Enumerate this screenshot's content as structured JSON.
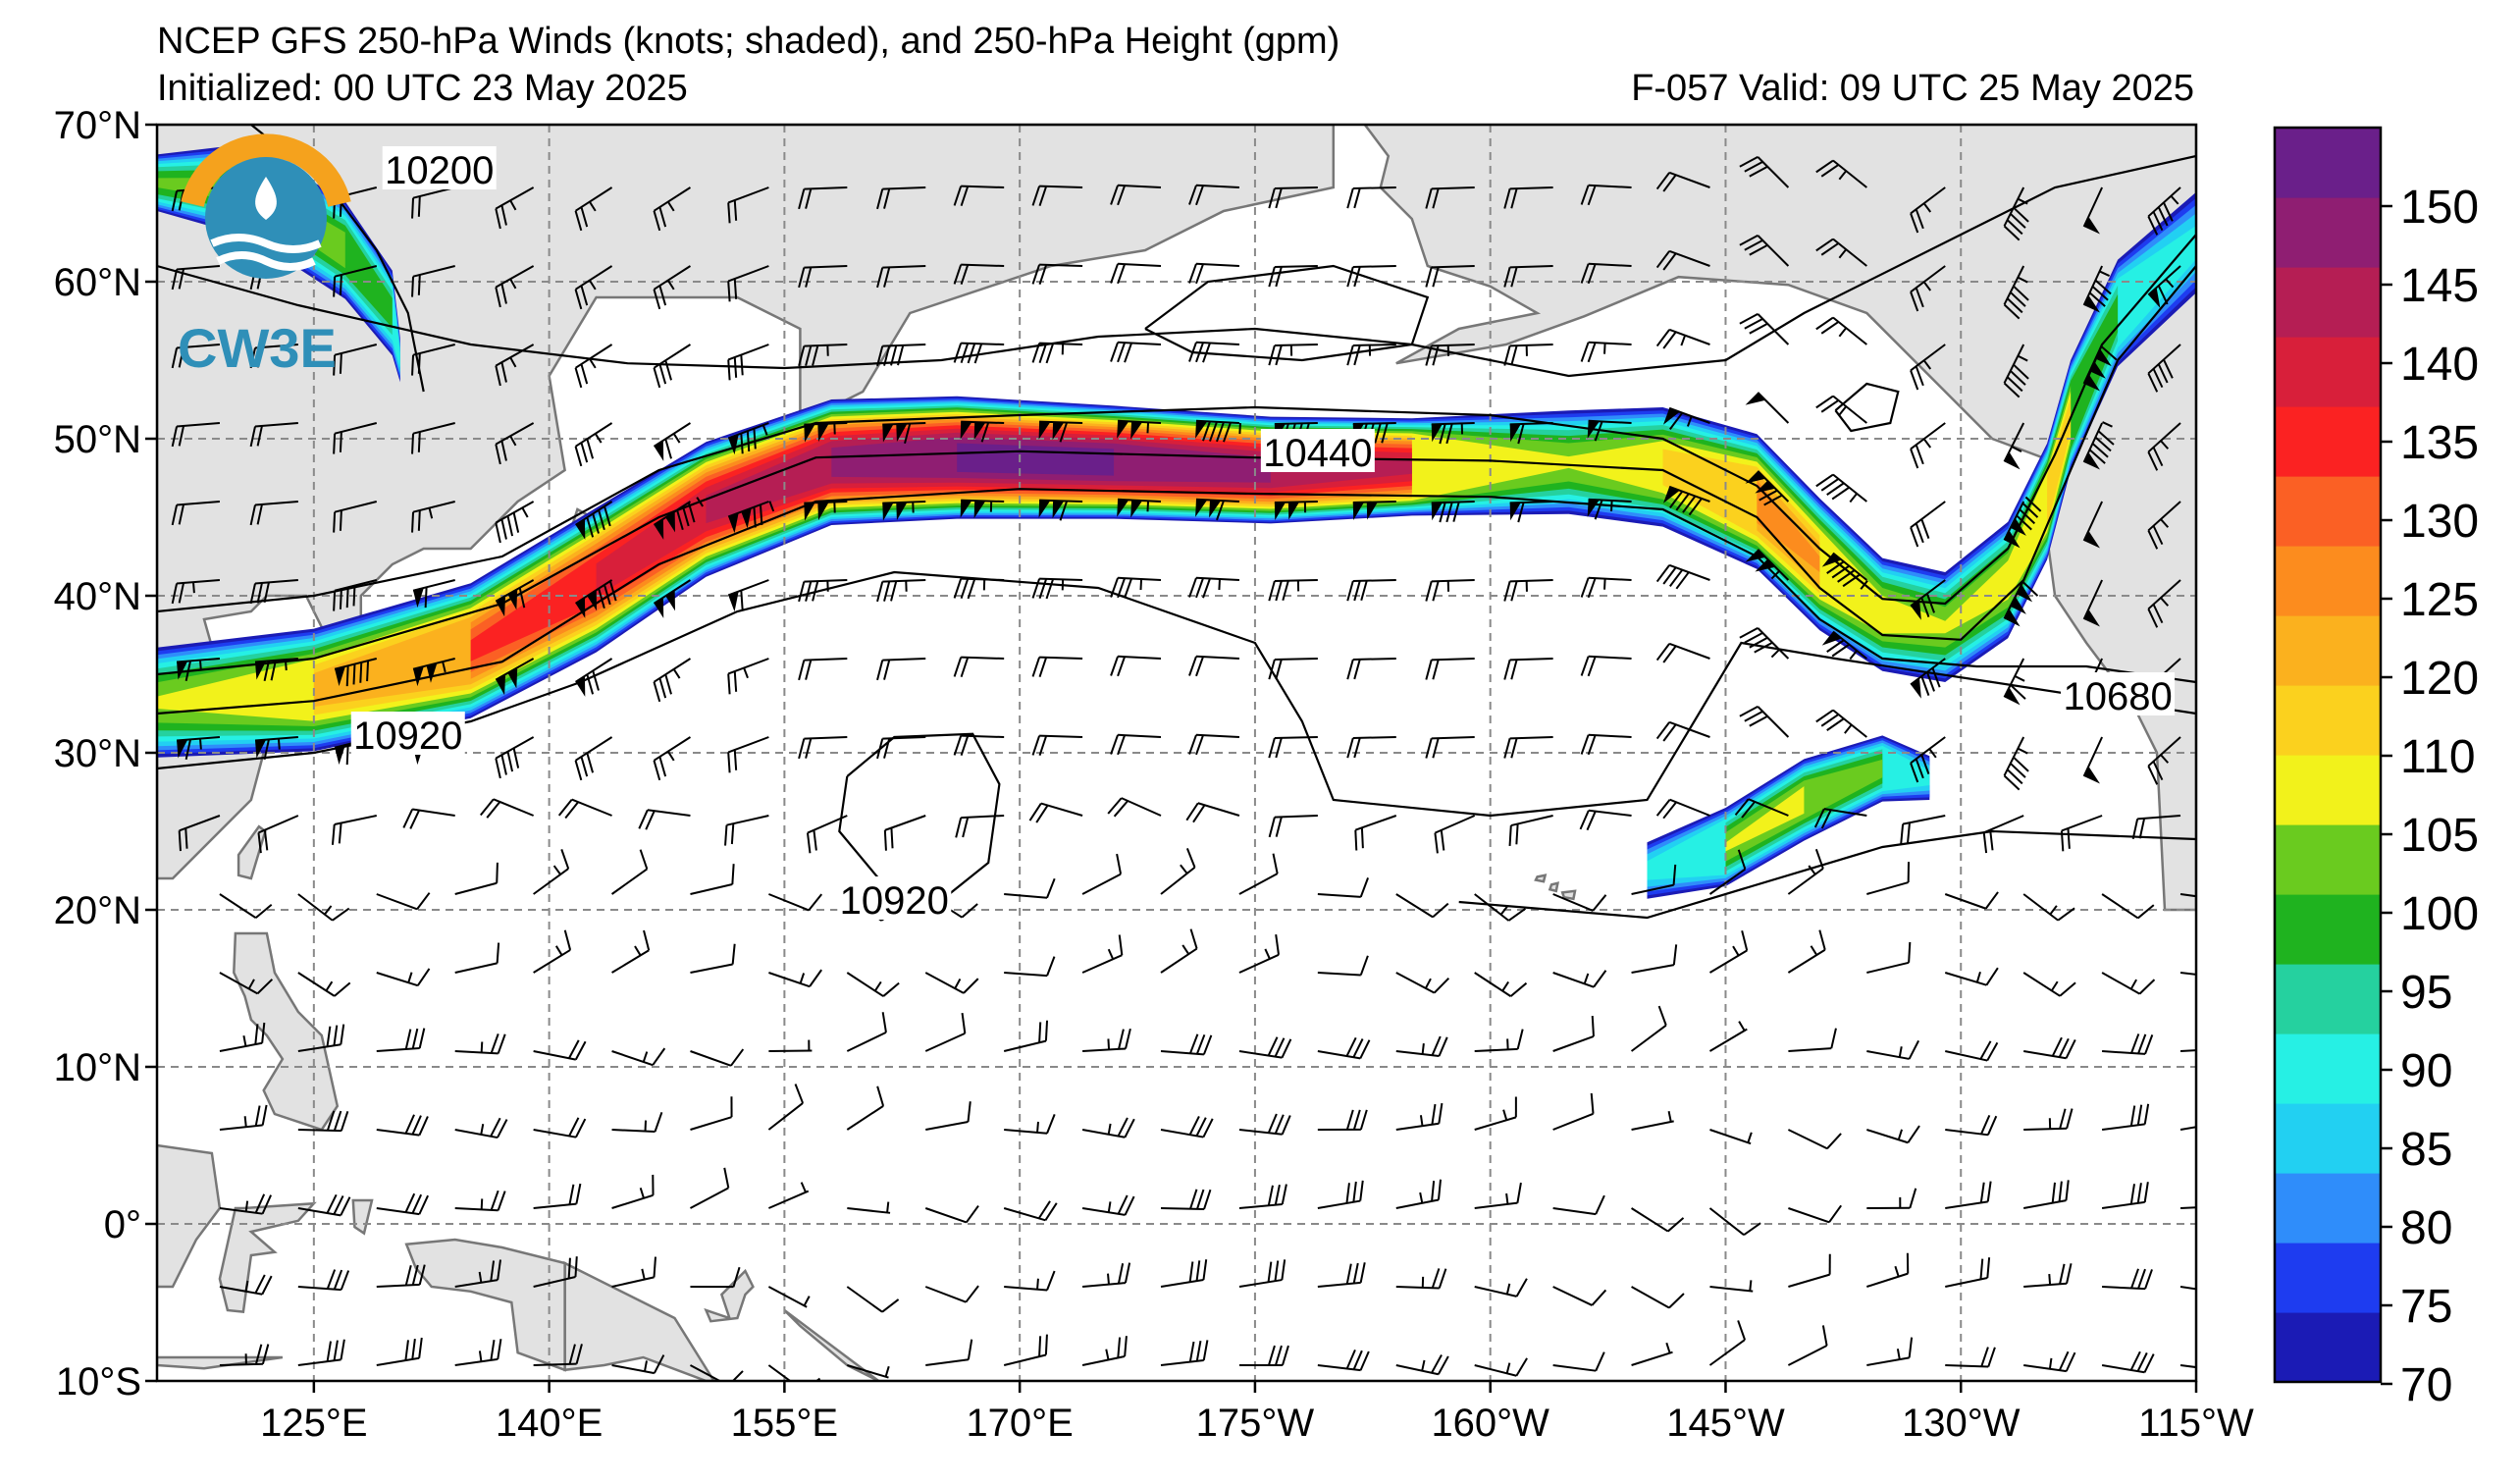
{
  "title": {
    "line1": "NCEP GFS 250-hPa Winds (knots; shaded), and 250-hPa Height (gpm)",
    "init": "Initialized: 00 UTC 23 May 2025",
    "valid": "F-057  Valid: 09 UTC 25 May 2025"
  },
  "logo": {
    "text": "CW3E",
    "icon": "cw3e-logo-icon"
  },
  "map": {
    "lon_range_deg_east": [
      115,
      245
    ],
    "lat_range": [
      -10,
      70
    ],
    "lat_ticks": [
      "70°N",
      "60°N",
      "50°N",
      "40°N",
      "30°N",
      "20°N",
      "10°N",
      "0°",
      "10°S"
    ],
    "lon_ticks": [
      "125°E",
      "140°E",
      "155°E",
      "170°E",
      "175°W",
      "160°W",
      "145°W",
      "130°W",
      "115°W"
    ],
    "grid": true,
    "land_color": "#e2e2e2",
    "contour_labels": [
      {
        "text": "10200",
        "lon": 133,
        "lat": 67
      },
      {
        "text": "10440",
        "lon": 189,
        "lat": 49
      },
      {
        "text": "10680",
        "lon": 240,
        "lat": 33.5
      },
      {
        "text": "10920",
        "lon": 131,
        "lat": 31
      },
      {
        "text": "10920",
        "lon": 162,
        "lat": 20.5
      }
    ]
  },
  "colorbar": {
    "labels": [
      "150",
      "145",
      "140",
      "135",
      "130",
      "125",
      "120",
      "110",
      "105",
      "100",
      "95",
      "90",
      "85",
      "80",
      "75",
      "70"
    ],
    "colors": [
      "#1b1bb5",
      "#1e3cf0",
      "#2f8dfa",
      "#22d0f2",
      "#26f0e4",
      "#25d19f",
      "#1fb31f",
      "#6acb1f",
      "#f2f21b",
      "#fbd11e",
      "#fbb11e",
      "#fc8c1e",
      "#fb6024",
      "#fb2222",
      "#d81f3a",
      "#b51e54",
      "#8f1e72",
      "#6a1f8a"
    ]
  }
}
